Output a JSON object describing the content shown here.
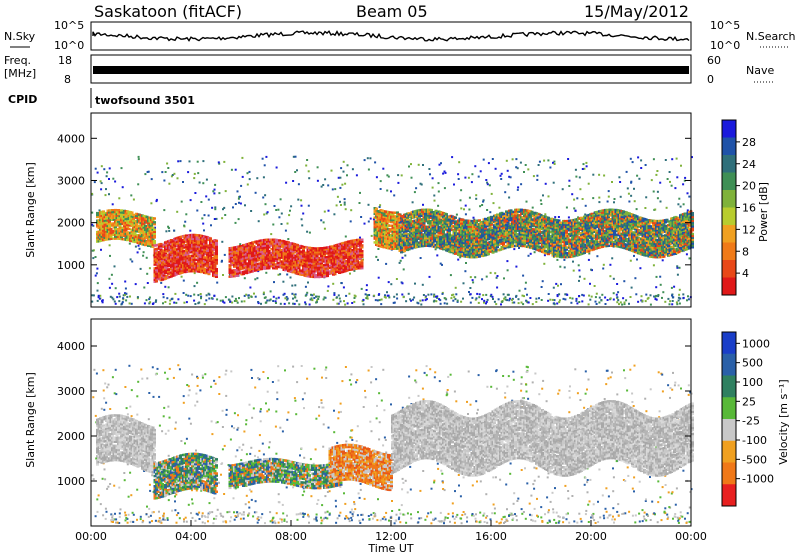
{
  "header": {
    "station": "Saskatoon (fitACF)",
    "beam": "Beam 05",
    "date": "15/May/2012"
  },
  "panels": {
    "nsky": {
      "left_label": "N.Sky",
      "ticks": [
        "10^5",
        "10^0"
      ],
      "right_ticks": [
        "10^5",
        "10^0"
      ],
      "right_label": "N.Search"
    },
    "freq": {
      "left_label_1": "Freq.",
      "left_label_2": "[MHz]",
      "left_ticks": [
        "18",
        "8"
      ],
      "right_ticks": [
        "60",
        "0"
      ],
      "right_label": "Nave"
    },
    "cpid": {
      "label": "CPID",
      "value": "twofsound 3501"
    }
  },
  "chart_data": [
    {
      "type": "heatmap",
      "name": "power",
      "ylabel": "Slant Range [km]",
      "ylim": [
        0,
        4600
      ],
      "yticks": [
        1000,
        2000,
        3000,
        4000
      ],
      "xlim": [
        0,
        24
      ],
      "colorbar": {
        "label": "Power [dB]",
        "ticks": [
          "28",
          "24",
          "20",
          "16",
          "12",
          "8",
          "4"
        ],
        "colors": [
          "#1a1adc",
          "#1f52a8",
          "#2f6f7a",
          "#3f8f55",
          "#7fb23a",
          "#b8cc2e",
          "#f0a020",
          "#f07a18",
          "#e84818",
          "#e01818"
        ]
      },
      "bands": [
        {
          "t0": 0.2,
          "t1": 2.5,
          "r0": 1500,
          "r1": 2200,
          "level": "high"
        },
        {
          "t0": 2.5,
          "t1": 5.0,
          "r0": 700,
          "r1": 1600,
          "level": "very_high"
        },
        {
          "t0": 5.5,
          "t1": 10.8,
          "r0": 800,
          "r1": 1500,
          "level": "very_high"
        },
        {
          "t0": 11.3,
          "t1": 12.3,
          "r0": 1500,
          "r1": 2400,
          "level": "high"
        },
        {
          "t0": 12.3,
          "t1": 24,
          "r0": 1300,
          "r1": 2200,
          "level": "medium"
        }
      ]
    },
    {
      "type": "heatmap",
      "name": "velocity",
      "ylabel": "Slant Range [km]",
      "xlabel": "Time UT",
      "ylim": [
        0,
        4600
      ],
      "yticks": [
        1000,
        2000,
        3000,
        4000
      ],
      "xlim": [
        0,
        24
      ],
      "xticks": [
        "00:00",
        "04:00",
        "08:00",
        "12:00",
        "16:00",
        "20:00",
        "00:00"
      ],
      "colorbar": {
        "label": "Velocity [m s⁻¹]",
        "ticks": [
          "1000",
          "500",
          "100",
          "25",
          "-25",
          "-100",
          "-500",
          "-1000"
        ],
        "colors": [
          "#1a3ec8",
          "#2a60a8",
          "#2f8060",
          "#58b838",
          "#c8c8c8",
          "#f0a020",
          "#f07818",
          "#e82020"
        ]
      },
      "bands": [
        {
          "t0": 0.2,
          "t1": 2.5,
          "r0": 1300,
          "r1": 2300,
          "level": "ground"
        },
        {
          "t0": 2.5,
          "t1": 5.0,
          "r0": 700,
          "r1": 1500,
          "level": "positive"
        },
        {
          "t0": 5.5,
          "t1": 10.0,
          "r0": 900,
          "r1": 1400,
          "level": "positive"
        },
        {
          "t0": 9.5,
          "t1": 12.0,
          "r0": 900,
          "r1": 1700,
          "level": "negative"
        },
        {
          "t0": 12.0,
          "t1": 24,
          "r0": 1300,
          "r1": 2600,
          "level": "ground"
        }
      ]
    }
  ]
}
